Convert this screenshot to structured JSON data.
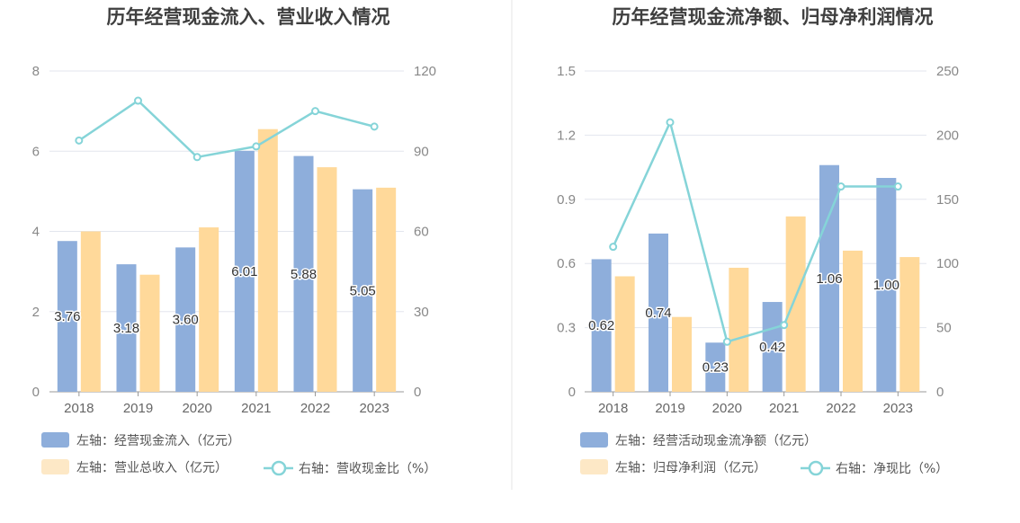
{
  "colors": {
    "bar_primary": "#8eaedb",
    "bar_secondary": "#ffd99a",
    "bar_secondary_legend": "#fde8c6",
    "line": "#85d4d8",
    "grid": "#e3e6ee",
    "axis": "#999999"
  },
  "chart_data": [
    {
      "type": "bar",
      "title": "历年经营现金流入、营业收入情况",
      "categories": [
        "2018",
        "2019",
        "2020",
        "2021",
        "2022",
        "2023"
      ],
      "left_axis": {
        "ylim": [
          0,
          8
        ],
        "ticks": [
          "0",
          "2",
          "4",
          "6",
          "8"
        ]
      },
      "right_axis": {
        "ylim": [
          0,
          120
        ],
        "ticks": [
          "0",
          "30",
          "60",
          "90",
          "120"
        ]
      },
      "grid": true,
      "legend_position": "bottom",
      "series": [
        {
          "name": "左轴：经营现金流入（亿元）",
          "type": "bar",
          "axis": "left",
          "values": [
            3.76,
            3.18,
            3.6,
            6.01,
            5.88,
            5.05
          ],
          "labels": [
            "3.76",
            "3.18",
            "3.60",
            "6.01",
            "5.88",
            "5.05"
          ]
        },
        {
          "name": "左轴：营业总收入（亿元）",
          "type": "bar",
          "axis": "left",
          "values": [
            4.0,
            2.92,
            4.1,
            6.55,
            5.6,
            5.09
          ]
        },
        {
          "name": "右轴：营收现金比（%）",
          "type": "line",
          "axis": "right",
          "values": [
            94.0,
            108.9,
            87.8,
            91.8,
            105.0,
            99.2
          ]
        }
      ]
    },
    {
      "type": "bar",
      "title": "历年经营现金流净额、归母净利润情况",
      "categories": [
        "2018",
        "2019",
        "2020",
        "2021",
        "2022",
        "2023"
      ],
      "left_axis": {
        "ylim": [
          0,
          1.5
        ],
        "ticks": [
          "0",
          "0.3",
          "0.6",
          "0.9",
          "1.2",
          "1.5"
        ]
      },
      "right_axis": {
        "ylim": [
          0,
          250
        ],
        "ticks": [
          "0",
          "50",
          "100",
          "150",
          "200",
          "250"
        ]
      },
      "grid": true,
      "legend_position": "bottom",
      "series": [
        {
          "name": "左轴：经营活动现金流净额（亿元）",
          "type": "bar",
          "axis": "left",
          "values": [
            0.62,
            0.74,
            0.23,
            0.42,
            1.06,
            1.0
          ],
          "labels": [
            "0.62",
            "0.74",
            "0.23",
            "0.42",
            "1.06",
            "1.00"
          ]
        },
        {
          "name": "左轴：归母净利润（亿元）",
          "type": "bar",
          "axis": "left",
          "values": [
            0.54,
            0.35,
            0.58,
            0.82,
            0.66,
            0.63
          ]
        },
        {
          "name": "右轴：净现比（%）",
          "type": "line",
          "axis": "right",
          "values": [
            113,
            210,
            39,
            52,
            160,
            160
          ]
        }
      ]
    }
  ]
}
